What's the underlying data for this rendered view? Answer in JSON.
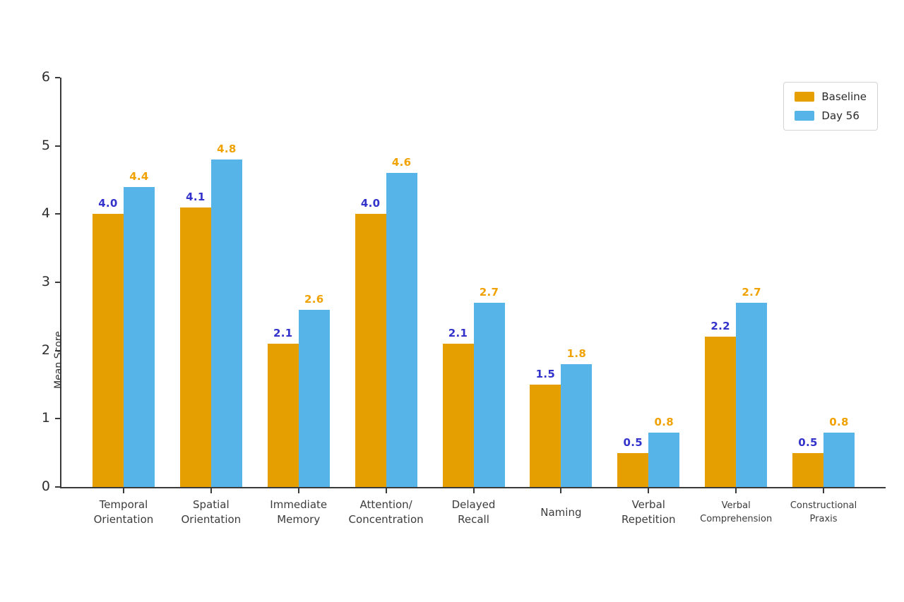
{
  "chart_data": {
    "type": "bar",
    "title": "",
    "xlabel": "",
    "ylabel": "Mean Score",
    "ylim": [
      0,
      6
    ],
    "yticks": [
      0,
      1,
      2,
      3,
      4,
      5,
      6
    ],
    "grid": false,
    "legend_position": "upper right",
    "categories": [
      "Temporal\nOrientation",
      "Spatial\nOrientation",
      "Immediate\nMemory",
      "Attention/\nConcentration",
      "Delayed\nRecall",
      "Naming",
      "Verbal\nRepetition",
      "Verbal\nComprehension",
      "Constructional\nPraxis"
    ],
    "series": [
      {
        "name": "Baseline",
        "color": "#E69F00",
        "value_label_color": "#3333CC",
        "values": [
          4.0,
          4.1,
          2.1,
          4.0,
          2.1,
          1.5,
          0.5,
          2.2,
          0.5
        ]
      },
      {
        "name": "Day 56",
        "color": "#56B4E9",
        "value_label_color": "#F0A202",
        "values": [
          4.4,
          4.8,
          2.6,
          4.6,
          2.7,
          1.8,
          0.8,
          2.7,
          0.8
        ]
      }
    ]
  },
  "colors": {
    "axis": "#3A3A3A",
    "tick_text": "#2E2E2E",
    "category_text": "#3C3C3C",
    "background": "#FFFFFF"
  }
}
